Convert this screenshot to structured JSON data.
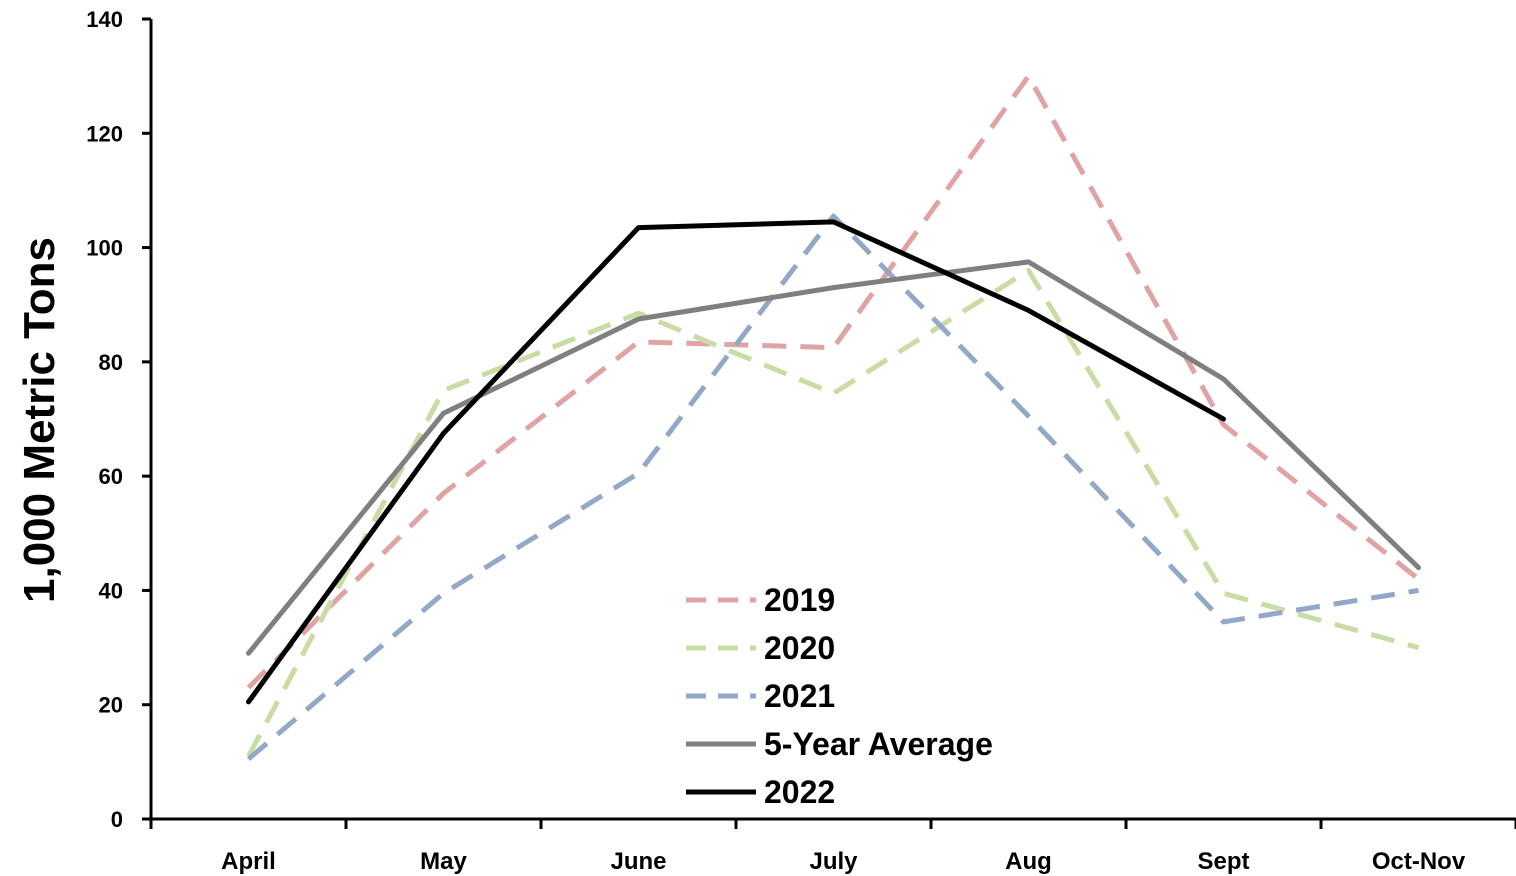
{
  "chart_data": {
    "type": "line",
    "ylabel": "1,000 Metric Tons",
    "xlabel": "",
    "ylim": [
      0,
      140
    ],
    "yticks": [
      0,
      20,
      40,
      60,
      80,
      100,
      120,
      140
    ],
    "categories": [
      "April",
      "May",
      "June",
      "July",
      "Aug",
      "Sept",
      "Oct-Nov"
    ],
    "grid": false,
    "legend": "bottom-center",
    "series": [
      {
        "name": "2019",
        "color": "#e0a3a3",
        "dash": true,
        "values": [
          23,
          57,
          83.5,
          82.5,
          130,
          69,
          42
        ]
      },
      {
        "name": "2020",
        "color": "#c8dca3",
        "dash": true,
        "values": [
          11,
          75,
          88.5,
          74.5,
          96,
          39.5,
          30
        ]
      },
      {
        "name": "2021",
        "color": "#93a8c6",
        "dash": true,
        "values": [
          10.5,
          39.5,
          60.5,
          105.5,
          70.5,
          34.5,
          40
        ]
      },
      {
        "name": "5-Year Average",
        "color": "#7f7f7f",
        "dash": false,
        "values": [
          29,
          71,
          87.5,
          93,
          97.5,
          77,
          44
        ]
      },
      {
        "name": "2022",
        "color": "#000000",
        "dash": false,
        "values": [
          20.5,
          67.5,
          103.5,
          104.5,
          89,
          70,
          null
        ]
      }
    ]
  }
}
